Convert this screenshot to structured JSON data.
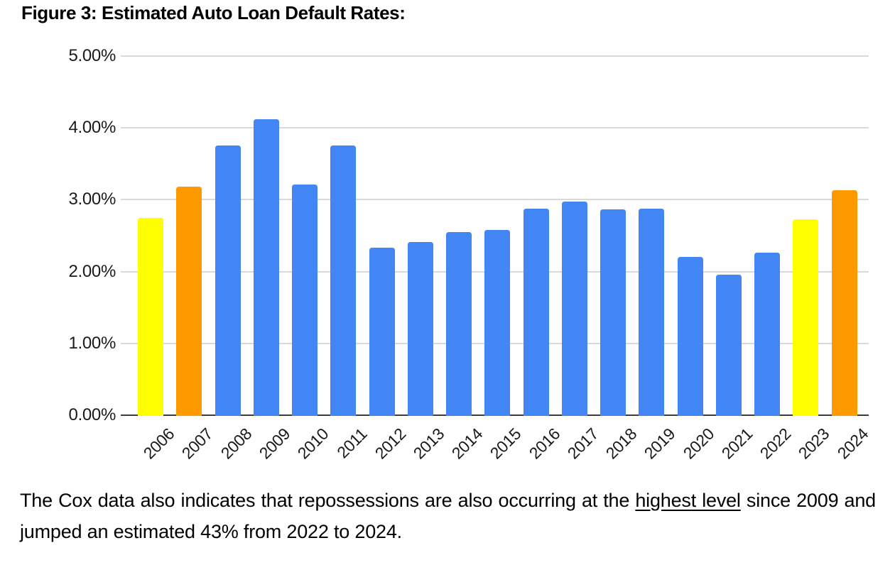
{
  "title": "Figure 3: Estimated Auto Loan Default Rates:",
  "chart_data": {
    "type": "bar",
    "title": "Figure 3: Estimated Auto Loan Default Rates:",
    "categories": [
      "2006",
      "2007",
      "2008",
      "2009",
      "2010",
      "2011",
      "2012",
      "2013",
      "2014",
      "2015",
      "2016",
      "2017",
      "2018",
      "2019",
      "2020",
      "2021",
      "2022",
      "2023",
      "2024"
    ],
    "values": [
      2.75,
      3.18,
      3.75,
      4.12,
      3.21,
      3.75,
      2.33,
      2.41,
      2.55,
      2.58,
      2.88,
      2.97,
      2.87,
      2.88,
      2.2,
      1.96,
      2.26,
      2.73,
      3.13
    ],
    "unit": "%",
    "xlabel": "",
    "ylabel": "",
    "y_ticks": [
      "0.00%",
      "1.00%",
      "2.00%",
      "3.00%",
      "4.00%",
      "5.00%"
    ],
    "ylim": [
      0,
      5
    ],
    "grid": true,
    "legend": "none",
    "bar_colors": [
      "#FFFF00",
      "#FF9900",
      "#4285F4",
      "#4285F4",
      "#4285F4",
      "#4285F4",
      "#4285F4",
      "#4285F4",
      "#4285F4",
      "#4285F4",
      "#4285F4",
      "#4285F4",
      "#4285F4",
      "#4285F4",
      "#4285F4",
      "#4285F4",
      "#4285F4",
      "#FFFF00",
      "#FF9900"
    ],
    "colors": {
      "blue": "#4285F4",
      "yellow": "#FFFF00",
      "orange": "#FF9900",
      "gridline": "#D9D9D9",
      "axis_line": "#3C3C3C",
      "label_text": "#1A1A1A"
    }
  },
  "caption": {
    "before": "The Cox data also indicates that repossessions are also occurring at the ",
    "underlined": "highest level",
    "after": " since 2009 and jumped an estimated 43% from 2022 to 2024."
  }
}
